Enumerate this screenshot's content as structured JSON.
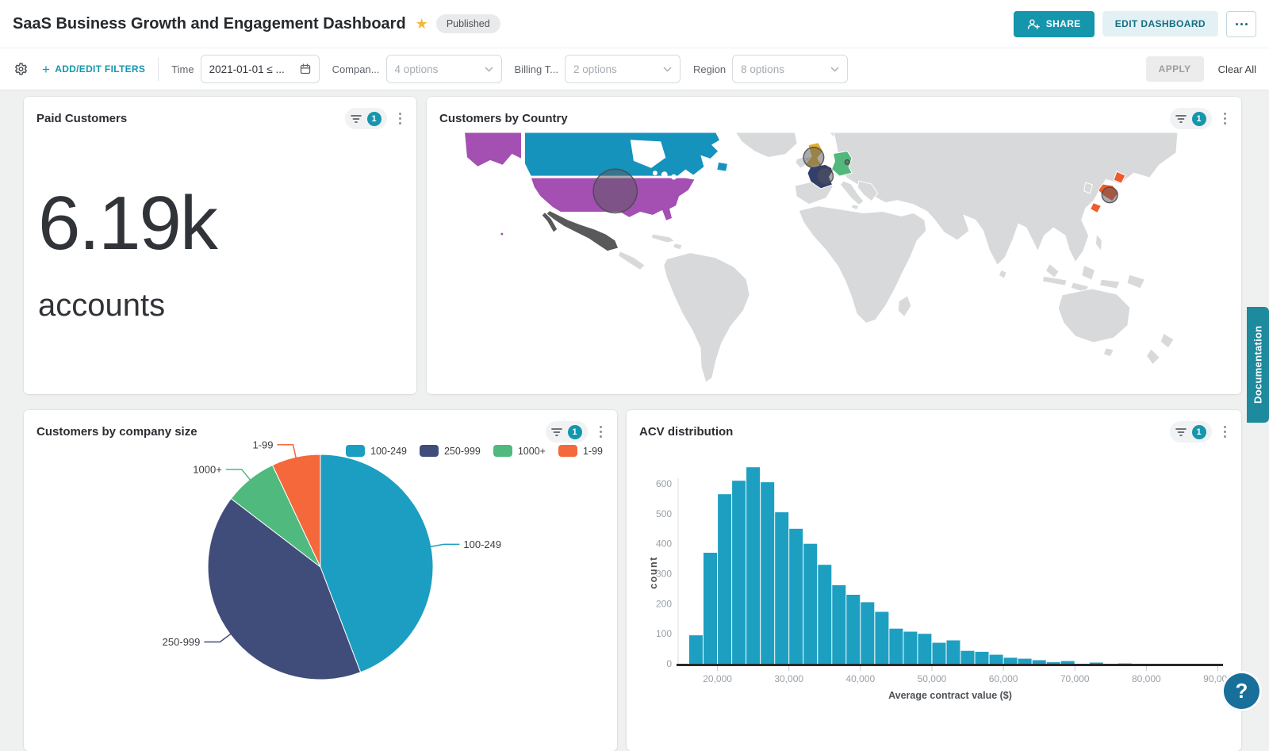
{
  "header": {
    "title": "SaaS Business Growth and Engagement Dashboard",
    "status_badge": "Published",
    "share_label": "SHARE",
    "edit_label": "EDIT DASHBOARD"
  },
  "filter_bar": {
    "add_edit": "ADD/EDIT FILTERS",
    "filters": [
      {
        "label": "Time",
        "value": "2021-01-01 ≤ ...",
        "type": "date"
      },
      {
        "label": "Compan...",
        "value": "4 options",
        "type": "select"
      },
      {
        "label": "Billing T...",
        "value": "2 options",
        "type": "select"
      },
      {
        "label": "Region",
        "value": "8 options",
        "type": "select"
      }
    ],
    "apply": "APPLY",
    "clear": "Clear All"
  },
  "panels": {
    "kpi": {
      "title": "Paid Customers",
      "filter_count": "1",
      "value": "6.19k",
      "unit": "accounts"
    },
    "map": {
      "title": "Customers by Country",
      "filter_count": "1"
    },
    "pie": {
      "title": "Customers by company size",
      "filter_count": "1"
    },
    "hist": {
      "title": "ACV distribution",
      "filter_count": "1"
    }
  },
  "side": {
    "documentation": "Documentation",
    "help": "?"
  },
  "chart_data": [
    {
      "type": "pie",
      "title": "Customers by company size",
      "categories": [
        "100-249",
        "250-999",
        "1000+",
        "1-99"
      ],
      "values": [
        44.2,
        41.2,
        7.6,
        7.0
      ],
      "colors": [
        "#1B9EC1",
        "#404D7A",
        "#4FB97E",
        "#F4683C"
      ],
      "legend_position": "top-right",
      "labels": "outside-with-leader-lines"
    },
    {
      "type": "bar",
      "title": "ACV distribution",
      "xlabel": "Average contract value ($)",
      "ylabel": "count",
      "bin_start": 16000,
      "bin_width": 2000,
      "values": [
        95,
        370,
        565,
        610,
        655,
        605,
        505,
        450,
        400,
        330,
        262,
        230,
        205,
        173,
        117,
        107,
        100,
        70,
        78,
        43,
        40,
        30,
        20,
        17,
        12,
        5,
        9,
        0,
        4,
        0,
        1,
        0,
        0,
        0,
        0,
        0,
        0
      ],
      "bar_color": "#1D9FC2",
      "x_ticks": [
        20000,
        30000,
        40000,
        50000,
        60000,
        70000,
        80000,
        90000
      ],
      "y_ticks": [
        0,
        100,
        200,
        300,
        400,
        500,
        600
      ],
      "xlim": [
        14500,
        90500
      ],
      "ylim": [
        0,
        680
      ],
      "grid": false
    },
    {
      "type": "map",
      "title": "Customers by Country",
      "base_color": "#D8D9DA",
      "highlighted": [
        {
          "country": "Canada",
          "color": "#1693BC"
        },
        {
          "country": "United States",
          "color": "#A44FB2",
          "bubble": "large"
        },
        {
          "country": "Mexico",
          "color": "#59595B"
        },
        {
          "country": "United Kingdom",
          "color": "#DFAE33",
          "bubble": "medium"
        },
        {
          "country": "France",
          "color": "#333F6B",
          "bubble": "small"
        },
        {
          "country": "Germany",
          "color": "#52B87B",
          "bubble": "dot"
        },
        {
          "country": "Japan",
          "color": "#F15B2B",
          "bubble": "small"
        }
      ]
    }
  ]
}
